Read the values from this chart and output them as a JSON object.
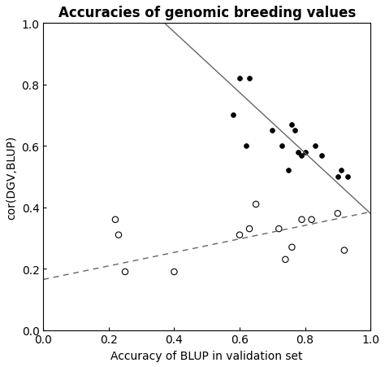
{
  "title": "Accuracies of genomic breeding values",
  "xlabel": "Accuracy of BLUP in validation set",
  "ylabel": "cor(DGV,BLUP)",
  "xlim": [
    0.0,
    1.0
  ],
  "ylim": [
    0.0,
    1.0
  ],
  "xticks": [
    0.0,
    0.2,
    0.4,
    0.6,
    0.8,
    1.0
  ],
  "yticks": [
    0.0,
    0.2,
    0.4,
    0.6,
    0.8,
    1.0
  ],
  "filled_points": [
    [
      0.58,
      0.7
    ],
    [
      0.6,
      0.82
    ],
    [
      0.62,
      0.6
    ],
    [
      0.63,
      0.82
    ],
    [
      0.7,
      0.65
    ],
    [
      0.73,
      0.6
    ],
    [
      0.75,
      0.52
    ],
    [
      0.76,
      0.67
    ],
    [
      0.77,
      0.65
    ],
    [
      0.78,
      0.58
    ],
    [
      0.79,
      0.57
    ],
    [
      0.8,
      0.58
    ],
    [
      0.83,
      0.6
    ],
    [
      0.85,
      0.57
    ],
    [
      0.9,
      0.5
    ],
    [
      0.91,
      0.52
    ],
    [
      0.93,
      0.5
    ]
  ],
  "open_points": [
    [
      0.22,
      0.36
    ],
    [
      0.23,
      0.31
    ],
    [
      0.25,
      0.19
    ],
    [
      0.4,
      0.19
    ],
    [
      0.6,
      0.31
    ],
    [
      0.63,
      0.33
    ],
    [
      0.65,
      0.41
    ],
    [
      0.72,
      0.33
    ],
    [
      0.74,
      0.23
    ],
    [
      0.76,
      0.27
    ],
    [
      0.79,
      0.36
    ],
    [
      0.82,
      0.36
    ],
    [
      0.9,
      0.38
    ],
    [
      0.92,
      0.26
    ]
  ],
  "solid_line_x": [
    0.35,
    1.0
  ],
  "solid_line_y": [
    1.02,
    0.38
  ],
  "dashed_line_x": [
    0.0,
    1.0
  ],
  "dashed_line_y": [
    0.165,
    0.385
  ],
  "background_color": "#ffffff",
  "point_color": "#000000",
  "line_color": "#666666",
  "title_fontsize": 12,
  "axis_fontsize": 10
}
